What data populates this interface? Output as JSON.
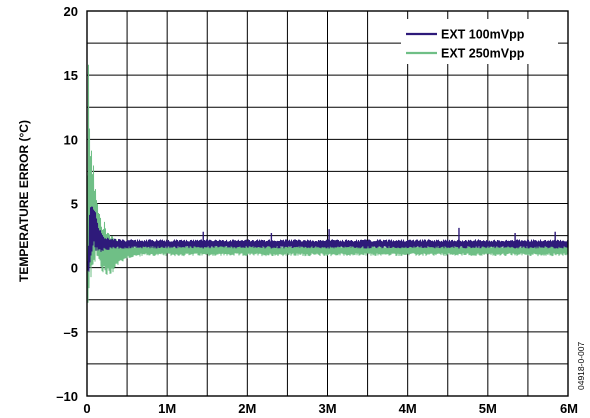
{
  "chart_data": {
    "type": "line",
    "title": "",
    "xlabel": "",
    "ylabel": "TEMPERATURE ERROR (°C)",
    "xlim": [
      0,
      6000000
    ],
    "ylim": [
      -10,
      20
    ],
    "x_ticks": [
      {
        "value": 0,
        "label": "0"
      },
      {
        "value": 1000000,
        "label": "1M"
      },
      {
        "value": 2000000,
        "label": "2M"
      },
      {
        "value": 3000000,
        "label": "3M"
      },
      {
        "value": 4000000,
        "label": "4M"
      },
      {
        "value": 5000000,
        "label": "5M"
      },
      {
        "value": 6000000,
        "label": "6M"
      }
    ],
    "y_ticks": [
      {
        "value": 20,
        "label": "20"
      },
      {
        "value": 15,
        "label": "15"
      },
      {
        "value": 10,
        "label": "10"
      },
      {
        "value": 5,
        "label": "5"
      },
      {
        "value": 0,
        "label": "0"
      },
      {
        "value": -5,
        "label": "–5"
      },
      {
        "value": -10,
        "label": "–10"
      }
    ],
    "grid": true,
    "x_minor_divisions": 2,
    "legend_position": "top-right",
    "series": [
      {
        "name": "EXT 100mVpp",
        "color": "#2e1a7a",
        "envelope": {
          "x": [
            0,
            20000,
            40000,
            60000,
            80000,
            100000,
            120000,
            150000,
            200000,
            300000,
            500000,
            1000000,
            2000000,
            3000000,
            4000000,
            5000000,
            6000000
          ],
          "upper": [
            0,
            2,
            6,
            5.5,
            5,
            4.5,
            4,
            3.2,
            2.6,
            2.3,
            2.2,
            2.2,
            2.2,
            2.2,
            2.2,
            2.2,
            2.2
          ],
          "lower": [
            0,
            -1,
            0.5,
            1.2,
            1.5,
            1.5,
            1.2,
            1,
            1.3,
            1.4,
            1.5,
            1.5,
            1.5,
            1.5,
            1.5,
            1.5,
            1.5
          ]
        },
        "spikes": [
          {
            "x": 1450000,
            "y": 2.8
          },
          {
            "x": 2300000,
            "y": 2.7
          },
          {
            "x": 3020000,
            "y": 3.0
          },
          {
            "x": 4640000,
            "y": 3.1
          },
          {
            "x": 5340000,
            "y": 2.7
          },
          {
            "x": 5840000,
            "y": 2.8
          }
        ]
      },
      {
        "name": "EXT 250mVpp",
        "color": "#6fbf86",
        "envelope": {
          "x": [
            0,
            15000,
            30000,
            45000,
            60000,
            80000,
            100000,
            130000,
            160000,
            200000,
            250000,
            300000,
            400000,
            500000,
            700000,
            1000000,
            2000000,
            3000000,
            4000000,
            5000000,
            6000000
          ],
          "upper": [
            0,
            17.3,
            14,
            11,
            9,
            8.3,
            7.2,
            6,
            4.8,
            4,
            3.3,
            2.6,
            2.0,
            1.8,
            1.8,
            1.8,
            1.8,
            1.8,
            1.8,
            1.8,
            1.8
          ],
          "lower": [
            0,
            -7.5,
            -4,
            -2,
            0,
            -0.5,
            0.2,
            0.3,
            -0.3,
            -0.7,
            -1.1,
            -0.6,
            0.2,
            0.7,
            0.9,
            0.9,
            0.9,
            0.9,
            0.9,
            0.9,
            0.9
          ]
        },
        "spikes": []
      }
    ],
    "figure_id": "04918-0-007"
  }
}
